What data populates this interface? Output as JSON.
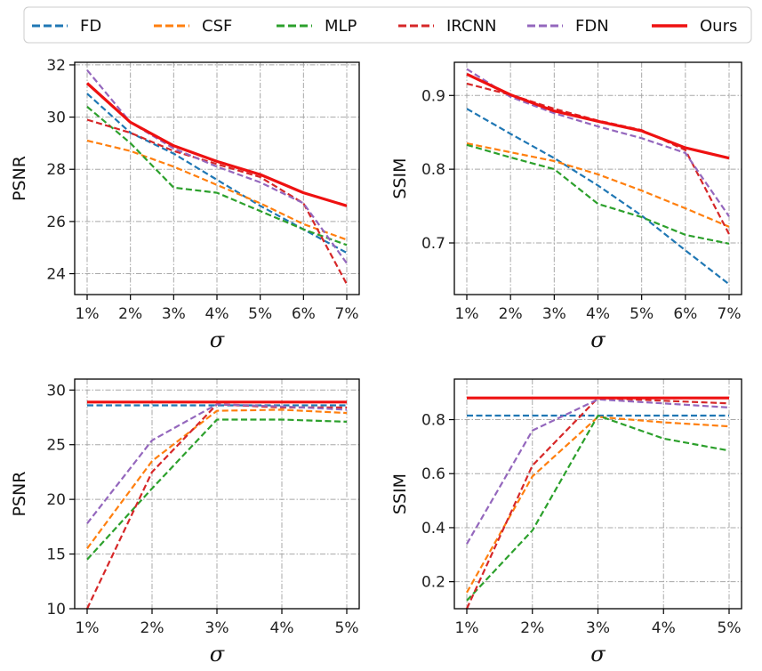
{
  "legend": [
    {
      "name": "FD",
      "color": "#1f77b4",
      "dash": true
    },
    {
      "name": "CSF",
      "color": "#ff7f0e",
      "dash": true
    },
    {
      "name": "MLP",
      "color": "#2ca02c",
      "dash": true
    },
    {
      "name": "IRCNN",
      "color": "#d62728",
      "dash": true
    },
    {
      "name": "FDN",
      "color": "#9467bd",
      "dash": true
    },
    {
      "name": "Ours",
      "color": "#ee1111",
      "dash": false
    }
  ],
  "chart_data": [
    {
      "type": "line",
      "ylabel": "PSNR",
      "xlabel": "σ",
      "categories": [
        "1%",
        "2%",
        "3%",
        "4%",
        "5%",
        "6%",
        "7%"
      ],
      "ylim": [
        23.2,
        32.1
      ],
      "yticks": [
        24,
        26,
        28,
        30,
        32
      ],
      "grid": true,
      "series": [
        {
          "name": "FD",
          "values": [
            30.9,
            29.4,
            28.6,
            27.6,
            26.6,
            25.7,
            24.8
          ]
        },
        {
          "name": "CSF",
          "values": [
            29.1,
            28.7,
            28.1,
            27.4,
            26.7,
            25.9,
            25.3
          ]
        },
        {
          "name": "MLP",
          "values": [
            30.4,
            29.0,
            27.3,
            27.1,
            26.4,
            25.7,
            25.1
          ]
        },
        {
          "name": "IRCNN",
          "values": [
            29.9,
            29.4,
            28.7,
            28.2,
            27.7,
            26.7,
            23.6
          ]
        },
        {
          "name": "FDN",
          "values": [
            31.8,
            29.8,
            28.8,
            28.1,
            27.5,
            26.7,
            24.4
          ]
        },
        {
          "name": "Ours",
          "values": [
            31.3,
            29.8,
            28.9,
            28.3,
            27.8,
            27.1,
            26.6
          ]
        }
      ]
    },
    {
      "type": "line",
      "ylabel": "SSIM",
      "xlabel": "σ",
      "categories": [
        "1%",
        "2%",
        "3%",
        "4%",
        "5%",
        "6%",
        "7%"
      ],
      "ylim": [
        0.63,
        0.945
      ],
      "yticks": [
        0.7,
        0.8,
        0.9
      ],
      "grid": true,
      "series": [
        {
          "name": "FD",
          "values": [
            0.882,
            0.848,
            0.815,
            0.778,
            0.737,
            0.69,
            0.644
          ]
        },
        {
          "name": "CSF",
          "values": [
            0.835,
            0.823,
            0.811,
            0.793,
            0.771,
            0.747,
            0.722
          ]
        },
        {
          "name": "MLP",
          "values": [
            0.833,
            0.816,
            0.8,
            0.753,
            0.735,
            0.711,
            0.699
          ]
        },
        {
          "name": "IRCNN",
          "values": [
            0.916,
            0.901,
            0.882,
            0.866,
            0.853,
            0.826,
            0.712
          ]
        },
        {
          "name": "FDN",
          "values": [
            0.936,
            0.898,
            0.876,
            0.858,
            0.842,
            0.822,
            0.736
          ]
        },
        {
          "name": "Ours",
          "values": [
            0.929,
            0.901,
            0.879,
            0.865,
            0.852,
            0.829,
            0.815
          ]
        }
      ]
    },
    {
      "type": "line",
      "ylabel": "PSNR",
      "xlabel": "σ",
      "categories": [
        "1%",
        "2%",
        "3%",
        "4%",
        "5%"
      ],
      "ylim": [
        10,
        31
      ],
      "yticks": [
        10,
        15,
        20,
        25,
        30
      ],
      "grid": true,
      "series": [
        {
          "name": "FD",
          "values": [
            28.6,
            28.6,
            28.6,
            28.6,
            28.6
          ]
        },
        {
          "name": "CSF",
          "values": [
            15.5,
            23.5,
            28.1,
            28.2,
            27.9
          ]
        },
        {
          "name": "MLP",
          "values": [
            14.5,
            21.0,
            27.3,
            27.3,
            27.1
          ]
        },
        {
          "name": "IRCNN",
          "values": [
            10.0,
            22.5,
            28.7,
            28.4,
            28.4
          ]
        },
        {
          "name": "FDN",
          "values": [
            17.8,
            25.4,
            28.7,
            28.5,
            28.2
          ]
        },
        {
          "name": "Ours",
          "values": [
            28.9,
            28.9,
            28.9,
            28.9,
            28.9
          ]
        }
      ]
    },
    {
      "type": "line",
      "ylabel": "SSIM",
      "xlabel": "σ",
      "categories": [
        "1%",
        "2%",
        "3%",
        "4%",
        "5%"
      ],
      "ylim": [
        0.1,
        0.95
      ],
      "yticks": [
        0.2,
        0.4,
        0.6,
        0.8
      ],
      "grid": true,
      "series": [
        {
          "name": "FD",
          "values": [
            0.815,
            0.815,
            0.815,
            0.815,
            0.815
          ]
        },
        {
          "name": "CSF",
          "values": [
            0.16,
            0.59,
            0.81,
            0.79,
            0.775
          ]
        },
        {
          "name": "MLP",
          "values": [
            0.13,
            0.39,
            0.815,
            0.73,
            0.685
          ]
        },
        {
          "name": "IRCNN",
          "values": [
            0.1,
            0.63,
            0.88,
            0.87,
            0.86
          ]
        },
        {
          "name": "FDN",
          "values": [
            0.34,
            0.76,
            0.875,
            0.86,
            0.845
          ]
        },
        {
          "name": "Ours",
          "values": [
            0.88,
            0.88,
            0.88,
            0.88,
            0.88
          ]
        }
      ]
    }
  ]
}
